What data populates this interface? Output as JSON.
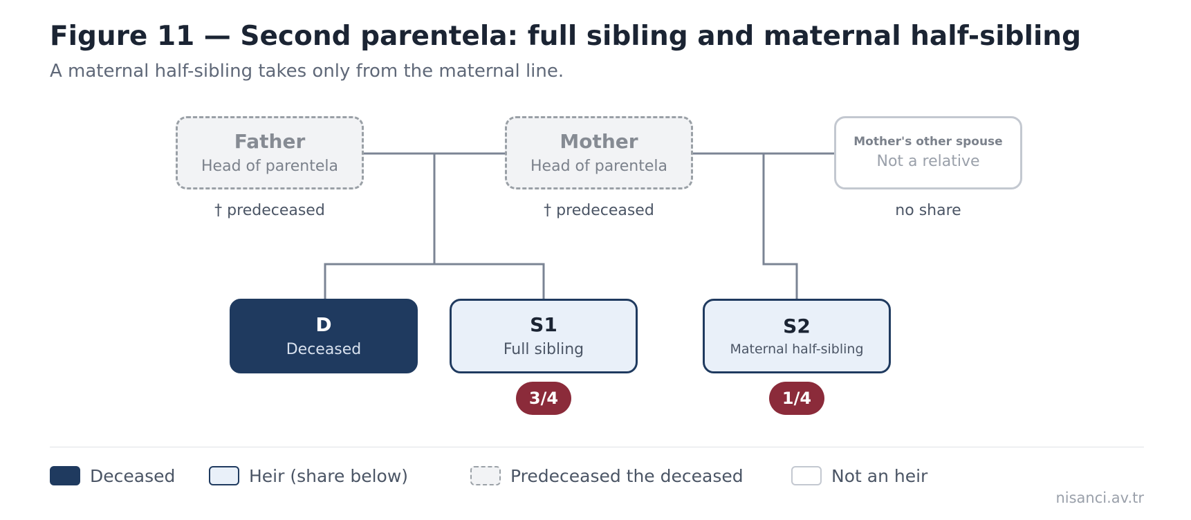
{
  "figure": {
    "title": "Figure 11 — Second parentela: full sibling and maternal half-sibling",
    "subtitle": "A maternal half-sibling takes only from the maternal line."
  },
  "nodes": {
    "father": {
      "name": "Father",
      "role": "Head of parentela",
      "note": "† predeceased",
      "status": "predeceased"
    },
    "mother": {
      "name": "Mother",
      "role": "Head of parentela",
      "note": "† predeceased",
      "status": "predeceased"
    },
    "other_spouse": {
      "name": "Mother's other spouse",
      "role": "Not a relative",
      "note": "no share",
      "status": "not-an-heir"
    },
    "deceased": {
      "name": "D",
      "role": "Deceased",
      "status": "deceased"
    },
    "s1": {
      "name": "S1",
      "role": "Full sibling",
      "share": "3/4",
      "status": "heir"
    },
    "s2": {
      "name": "S2",
      "role": "Maternal half-sibling",
      "share": "1/4",
      "status": "heir"
    }
  },
  "legend": {
    "deceased": "Deceased",
    "heir": "Heir (share below)",
    "predeceased": "Predeceased the deceased",
    "not_heir": "Not an heir"
  },
  "credit": "nisanci.av.tr",
  "colors": {
    "deceased_fill": "#1f3a5f",
    "heir_fill": "#e9f0f9",
    "predeceased_fill": "#f2f3f5",
    "share_badge": "#8b2b3a",
    "connector": "#7b8494"
  }
}
